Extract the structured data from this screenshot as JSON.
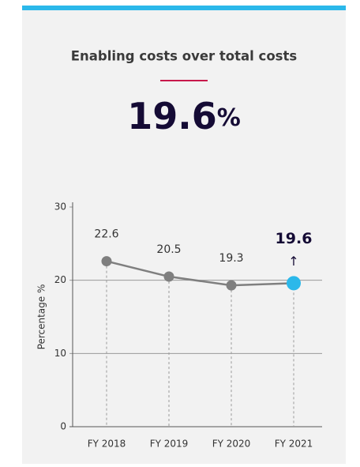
{
  "chart_data": {
    "type": "line",
    "title": "Enabling costs over total costs",
    "headline_value": "19.6",
    "headline_unit": "%",
    "y_label": "Percentage %",
    "categories": [
      "FY 2018",
      "FY 2019",
      "FY 2020",
      "FY 2021"
    ],
    "series": [
      {
        "name": "Enabling costs over total costs",
        "color": "#7f7f7f",
        "values": [
          22.6,
          20.5,
          19.3,
          19.6
        ]
      }
    ],
    "highlight_color": "#2bb8ea",
    "highlight_annotation": "↑",
    "ylim": [
      0,
      30
    ],
    "yticks": [
      0,
      10,
      20,
      30
    ],
    "grid": true
  }
}
